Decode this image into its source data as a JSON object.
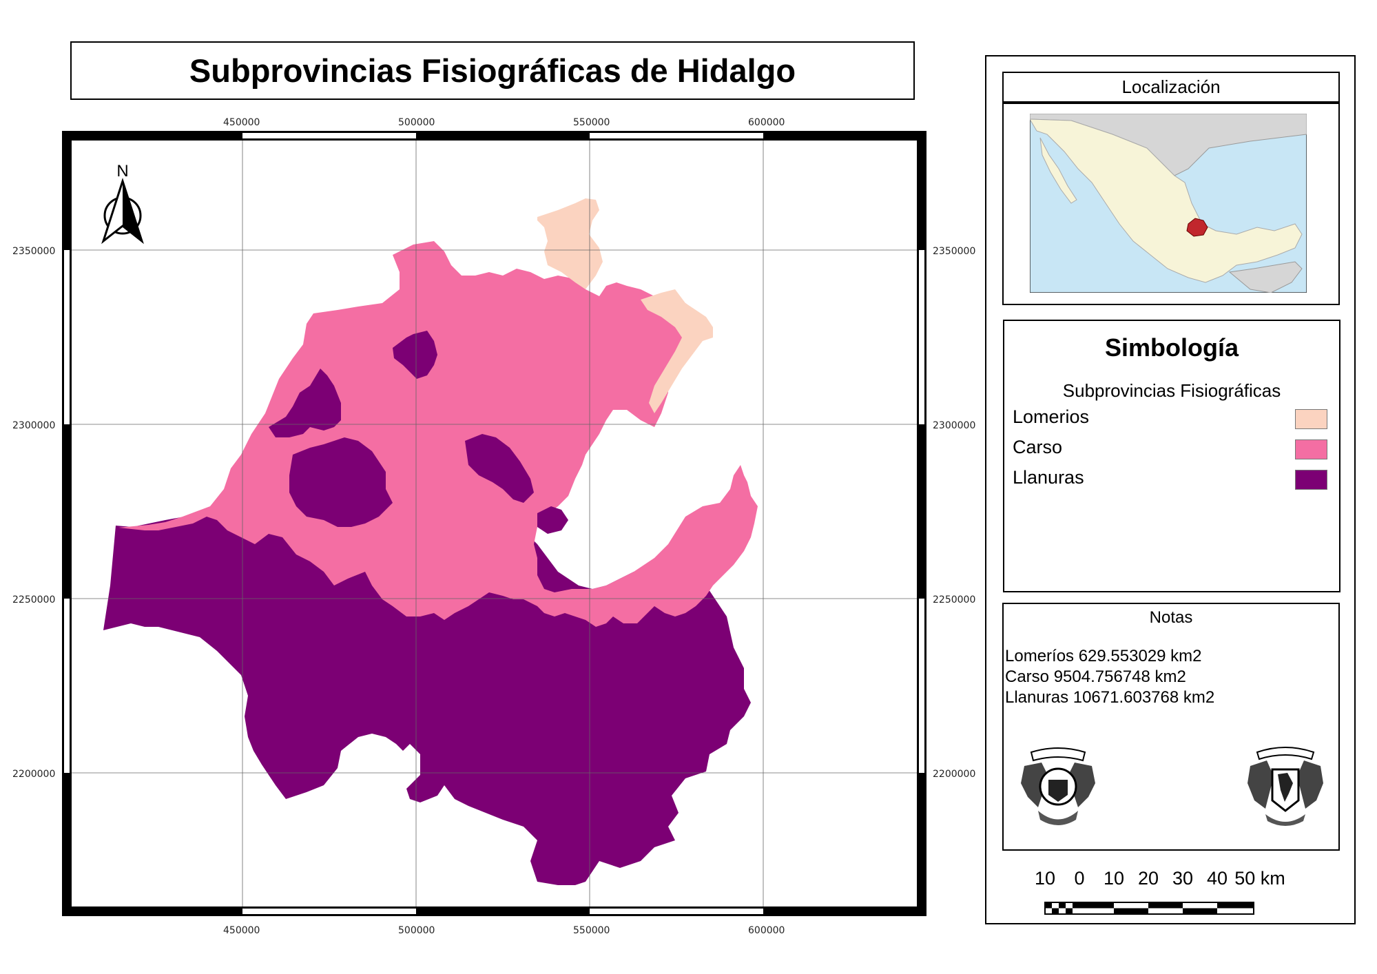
{
  "title": "Subprovincias Fisiográficas de Hidalgo",
  "grid": {
    "x_ticks": [
      "450000",
      "500000",
      "550000",
      "600000"
    ],
    "y_ticks": [
      "2350000",
      "2300000",
      "2250000",
      "2200000"
    ]
  },
  "north_arrow": {
    "label": "N",
    "icon": "north-arrow-icon"
  },
  "location": {
    "title": "Localización",
    "colors": {
      "sea": "#c8e6f5",
      "country": "#f7f4d8",
      "neighbor": "#d6d6d6",
      "highlight": "#c1272d"
    }
  },
  "legend": {
    "title": "Simbología",
    "subtitle": "Subprovincias Fisiográficas",
    "items": [
      {
        "label": "Lomerios",
        "color": "#fbd3c0"
      },
      {
        "label": "Carso",
        "color": "#f46ea3"
      },
      {
        "label": "Llanuras",
        "color": "#7c0074"
      }
    ]
  },
  "notes": {
    "title": "Notas",
    "lines": [
      "Lomeríos 629.553029 km2",
      "Carso 9504.756748 km2",
      "Llanuras 10671.603768 km2"
    ]
  },
  "logos": {
    "left": "ingenieria-logo",
    "right": "unam-logo"
  },
  "scalebar": {
    "labels": [
      "10",
      "0",
      "10",
      "20",
      "30",
      "40",
      "50 km"
    ]
  }
}
